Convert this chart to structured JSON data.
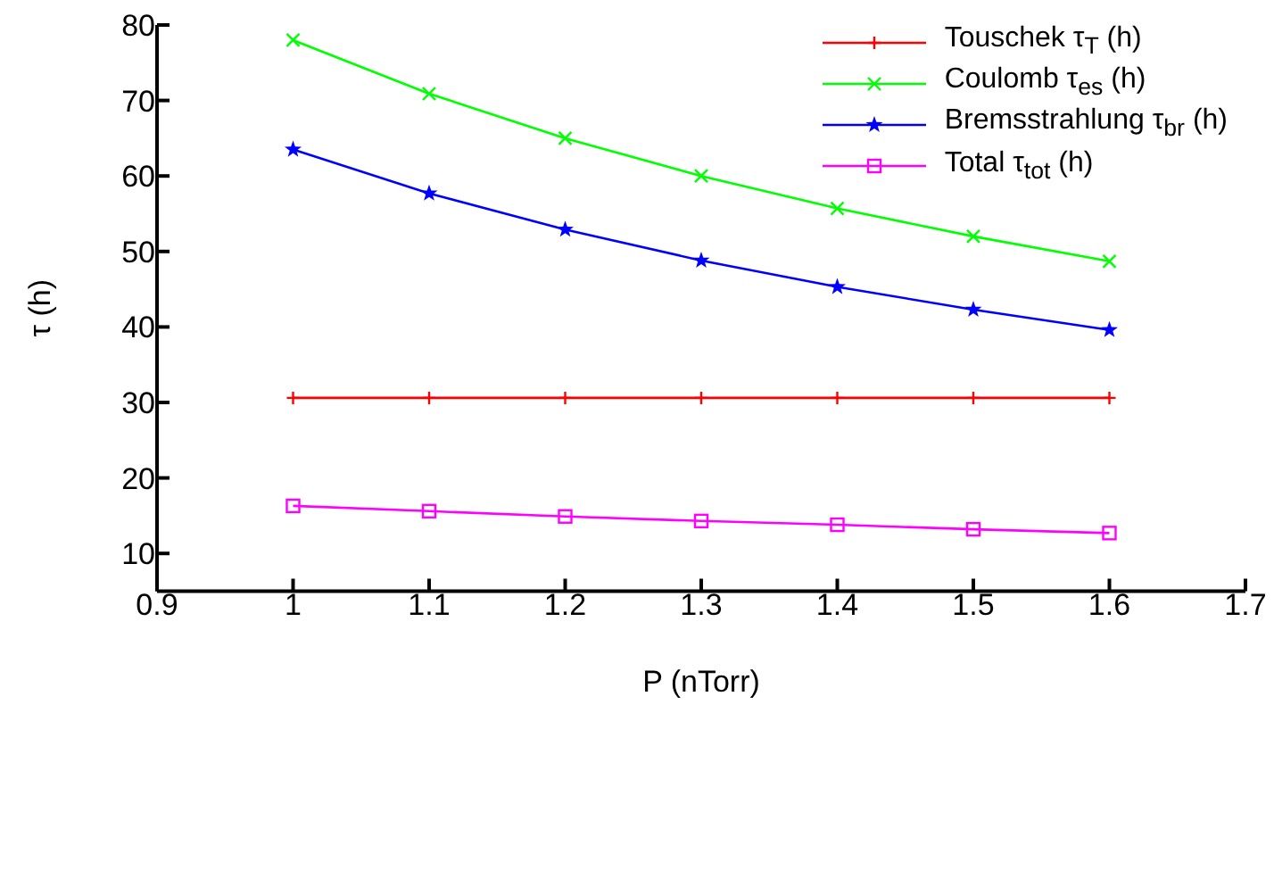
{
  "chart_data": {
    "type": "line",
    "xlabel": "P (nTorr)",
    "ylabel": "τ (h)",
    "x": [
      1,
      1.1,
      1.2,
      1.3,
      1.4,
      1.5,
      1.6
    ],
    "xlim": [
      0.9,
      1.7
    ],
    "xticks": [
      0.9,
      1,
      1.1,
      1.2,
      1.3,
      1.4,
      1.5,
      1.6,
      1.7
    ],
    "ylim": [
      5,
      80
    ],
    "yticks": [
      10,
      20,
      30,
      40,
      50,
      60,
      70,
      80
    ],
    "grid": false,
    "legend": "top right",
    "line_style": "solid",
    "series": [
      {
        "name": "Touschek τ$_{T}$ (h)",
        "color": "#ff0000",
        "marker": "cross",
        "values": [
          30.6,
          30.6,
          30.6,
          30.6,
          30.6,
          30.6,
          30.6
        ]
      },
      {
        "name": "Coulomb τ$_{es}$ (h)",
        "color": "#00ff00",
        "marker": "x",
        "values": [
          78,
          70.9,
          65,
          60,
          55.7,
          52,
          48.7
        ]
      },
      {
        "name": "Bremsstrahlung τ$_{br}$ (h)",
        "color": "#0000ff",
        "marker": "star",
        "values": [
          63.5,
          57.7,
          52.9,
          48.8,
          45.3,
          42.3,
          39.6
        ]
      },
      {
        "name": "Total τ$_{tot}$ (h)",
        "color": "#ff00ff",
        "marker": "square",
        "values": [
          16.3,
          15.6,
          14.9,
          14.3,
          13.8,
          13.2,
          12.7
        ]
      }
    ]
  }
}
